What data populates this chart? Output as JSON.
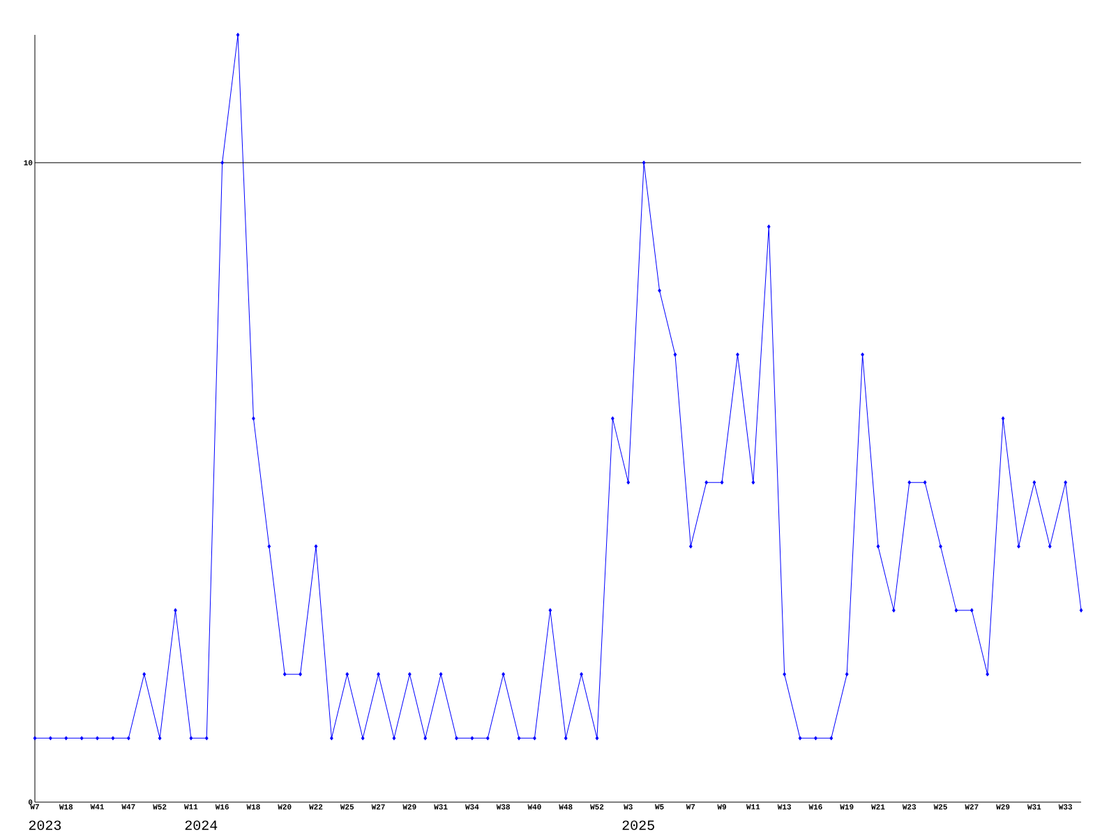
{
  "chart_data": {
    "type": "line",
    "categories": [
      "W7",
      null,
      "W18",
      null,
      "W41",
      null,
      "W47",
      null,
      "W52",
      null,
      "W11",
      null,
      "W16",
      null,
      "W18",
      null,
      "W20",
      null,
      "W22",
      null,
      "W25",
      null,
      "W27",
      null,
      "W29",
      null,
      "W31",
      null,
      "W34",
      null,
      "W38",
      null,
      "W40",
      null,
      "W48",
      null,
      "W52",
      null,
      "W3",
      null,
      "W5",
      null,
      "W7",
      null,
      "W9",
      null,
      "W11",
      null,
      "W13",
      null,
      "W16",
      null,
      "W19",
      null,
      "W21",
      null,
      "W23",
      null,
      "W25",
      null,
      "W27",
      null,
      "W29",
      null,
      "W31",
      null,
      "W33",
      null
    ],
    "series": [
      {
        "color": "#0000ff",
        "values": [
          1,
          1,
          1,
          1,
          1,
          1,
          1,
          2,
          1,
          3,
          1,
          1,
          10,
          12,
          6,
          4,
          2,
          2,
          4,
          1,
          2,
          1,
          2,
          1,
          2,
          1,
          2,
          1,
          1,
          1,
          2,
          1,
          1,
          3,
          1,
          2,
          1,
          6,
          5,
          10,
          8,
          7,
          4,
          5,
          5,
          7,
          5,
          9,
          2,
          1,
          1,
          1,
          2,
          7,
          4,
          3,
          5,
          5,
          4,
          3,
          3,
          2,
          6,
          4,
          5,
          4,
          5,
          3
        ]
      }
    ],
    "ylim": [
      0,
      12
    ],
    "yticks": [
      0,
      10
    ],
    "ref_lines": [
      {
        "axis": "y",
        "value": 10,
        "color": "#000000"
      }
    ],
    "annotations": [
      "2023",
      "2024",
      "2025"
    ],
    "marker": "diamond",
    "line_style": "solid",
    "grid": false
  }
}
